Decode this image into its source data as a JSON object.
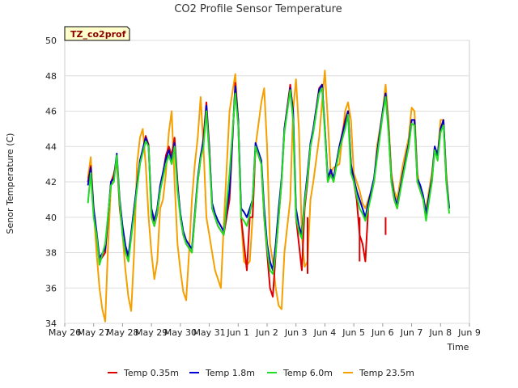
{
  "chart_data": {
    "type": "line",
    "title": "CO2 Profile Sensor Temperature",
    "xlabel": "Time",
    "ylabel": "Senor Temperature (C)",
    "badge": "TZ_co2prof",
    "ylim": [
      34,
      50
    ],
    "yticks": [
      34,
      36,
      38,
      40,
      42,
      44,
      46,
      48,
      50
    ],
    "xlim": [
      0,
      14
    ],
    "xticks": [
      0,
      1,
      2,
      3,
      4,
      5,
      6,
      7,
      8,
      9,
      10,
      11,
      12,
      13,
      14
    ],
    "xticklabels": [
      "May 26",
      "May 27",
      "May 28",
      "May 29",
      "May 30",
      "May 31",
      "Jun 1",
      "Jun 2",
      "Jun 3",
      "Jun 4",
      "Jun 5",
      "Jun 6",
      "Jun 7",
      "Jun 8",
      "Jun 9"
    ],
    "grid": true,
    "legend_position": "bottom",
    "series": [
      {
        "name": "Temp 0.35m",
        "color": "#dd0000",
        "x": [
          0.8,
          0.9,
          1.0,
          1.1,
          1.2,
          1.4,
          1.6,
          1.7,
          1.8,
          1.9,
          2.0,
          2.1,
          2.2,
          2.4,
          2.6,
          2.8,
          2.9,
          3.0,
          3.1,
          3.2,
          3.3,
          3.5,
          3.6,
          3.7,
          3.8,
          3.9,
          4.0,
          4.1,
          4.2,
          4.4,
          4.6,
          4.7,
          4.8,
          4.9,
          5.0,
          5.1,
          5.2,
          5.3,
          5.5,
          5.7,
          5.9,
          6.0,
          6.1,
          6.2,
          6.3,
          6.4,
          6.5,
          6.6,
          6.8,
          6.9,
          7.0,
          7.1,
          7.2,
          7.3,
          7.4,
          7.5,
          7.6,
          7.8,
          7.9,
          8.0,
          8.1,
          8.2,
          8.3,
          8.4,
          8.5,
          8.6,
          8.8,
          8.9,
          9.0,
          9.1,
          9.2,
          9.3,
          9.5,
          9.7,
          9.8,
          9.9,
          10.0,
          10.1,
          10.2,
          10.3,
          10.4,
          10.5,
          10.6,
          10.7,
          10.8,
          11.0,
          11.1,
          11.2,
          11.3,
          11.4,
          11.5,
          11.7,
          11.9,
          12.0,
          12.1,
          12.2,
          12.3,
          12.4,
          12.5,
          12.7,
          12.8,
          12.9,
          13.0,
          13.1,
          13.2,
          13.3
        ],
        "y": [
          42.0,
          42.9,
          40.2,
          39.0,
          37.5,
          38.0,
          42.0,
          42.4,
          43.4,
          40.5,
          39.2,
          38.2,
          37.5,
          40.5,
          43.0,
          44.6,
          44.1,
          40.1,
          39.5,
          40.2,
          41.5,
          43.5,
          44.0,
          43.5,
          44.5,
          42.0,
          40.0,
          39.0,
          38.5,
          38.0,
          42.0,
          43.3,
          44.5,
          46.5,
          44.0,
          40.5,
          40.0,
          39.5,
          39.0,
          41.0,
          47.6,
          45.5,
          40.0,
          38.5,
          37.0,
          40.0,
          40.0,
          44.0,
          43.0,
          40.0,
          38.0,
          36.0,
          35.5,
          38.0,
          40.0,
          42.0,
          45.0,
          47.5,
          46.0,
          40.0,
          38.5,
          37.0,
          40.5,
          42.0,
          44.0,
          45.0,
          47.3,
          47.5,
          45.0,
          42.0,
          42.5,
          42.0,
          44.0,
          45.5,
          46.0,
          43.0,
          42.0,
          41.0,
          39.0,
          38.5,
          37.5,
          40.5,
          41.5,
          42.0,
          43.5,
          46.0,
          47.0,
          45.0,
          42.0,
          41.0,
          40.5,
          42.5,
          44.0,
          45.5,
          45.5,
          42.0,
          41.5,
          41.0,
          40.0,
          42.0,
          44.0,
          43.5,
          45.0,
          45.5,
          42.0,
          40.5
        ],
        "extra_spikes": [
          [
            8.4,
            36.8
          ],
          [
            10.2,
            37.5
          ],
          [
            11.1,
            39.0
          ]
        ]
      },
      {
        "name": "Temp 1.8m",
        "color": "#0000cc",
        "x": [
          0.8,
          0.9,
          1.0,
          1.1,
          1.2,
          1.4,
          1.6,
          1.7,
          1.8,
          1.9,
          2.0,
          2.1,
          2.2,
          2.4,
          2.6,
          2.8,
          2.9,
          3.0,
          3.1,
          3.2,
          3.3,
          3.5,
          3.6,
          3.7,
          3.8,
          3.9,
          4.0,
          4.1,
          4.2,
          4.4,
          4.6,
          4.7,
          4.8,
          4.9,
          5.0,
          5.1,
          5.2,
          5.3,
          5.5,
          5.7,
          5.9,
          6.0,
          6.1,
          6.2,
          6.3,
          6.4,
          6.5,
          6.6,
          6.8,
          6.9,
          7.0,
          7.1,
          7.2,
          7.3,
          7.4,
          7.5,
          7.6,
          7.8,
          7.9,
          8.0,
          8.1,
          8.2,
          8.3,
          8.4,
          8.5,
          8.6,
          8.8,
          8.9,
          9.0,
          9.1,
          9.2,
          9.3,
          9.5,
          9.7,
          9.8,
          9.9,
          10.0,
          10.1,
          10.2,
          10.3,
          10.4,
          10.5,
          10.6,
          10.7,
          10.8,
          11.0,
          11.1,
          11.2,
          11.3,
          11.4,
          11.5,
          11.7,
          11.9,
          12.0,
          12.1,
          12.2,
          12.3,
          12.4,
          12.5,
          12.7,
          12.8,
          12.9,
          13.0,
          13.1,
          13.2,
          13.3
        ],
        "y": [
          41.8,
          42.8,
          40.5,
          39.2,
          37.7,
          38.2,
          42.0,
          42.2,
          43.6,
          41.0,
          39.5,
          38.4,
          37.8,
          40.5,
          43.2,
          44.5,
          44.0,
          40.5,
          39.8,
          40.5,
          41.8,
          43.3,
          43.8,
          43.2,
          44.2,
          41.8,
          40.2,
          39.2,
          38.7,
          38.2,
          42.2,
          43.5,
          44.3,
          46.3,
          43.8,
          40.8,
          40.2,
          39.8,
          39.2,
          41.5,
          47.4,
          45.5,
          40.5,
          40.3,
          40.0,
          40.5,
          41.0,
          44.2,
          43.2,
          40.5,
          38.5,
          37.5,
          37.0,
          38.5,
          40.5,
          42.2,
          45.0,
          47.3,
          46.0,
          40.5,
          39.5,
          39.0,
          41.0,
          42.5,
          44.2,
          45.0,
          47.2,
          47.5,
          45.0,
          42.2,
          42.7,
          42.2,
          44.0,
          45.3,
          46.0,
          43.0,
          42.2,
          41.5,
          41.0,
          40.5,
          40.0,
          40.8,
          41.5,
          42.2,
          43.6,
          46.0,
          47.0,
          45.0,
          42.2,
          41.2,
          40.7,
          42.5,
          44.2,
          45.5,
          45.5,
          42.2,
          41.8,
          41.2,
          40.2,
          42.2,
          44.0,
          43.5,
          45.0,
          45.5,
          42.2,
          40.5
        ]
      },
      {
        "name": "Temp 6.0m",
        "color": "#22dd22",
        "x": [
          0.8,
          0.9,
          1.0,
          1.1,
          1.2,
          1.4,
          1.6,
          1.7,
          1.8,
          1.9,
          2.0,
          2.1,
          2.2,
          2.4,
          2.6,
          2.8,
          2.9,
          3.0,
          3.1,
          3.2,
          3.3,
          3.5,
          3.6,
          3.7,
          3.8,
          3.9,
          4.0,
          4.1,
          4.2,
          4.4,
          4.6,
          4.7,
          4.8,
          4.9,
          5.0,
          5.1,
          5.2,
          5.3,
          5.5,
          5.7,
          5.9,
          6.0,
          6.1,
          6.2,
          6.3,
          6.4,
          6.5,
          6.6,
          6.8,
          6.9,
          7.0,
          7.1,
          7.2,
          7.3,
          7.4,
          7.5,
          7.6,
          7.8,
          7.9,
          8.0,
          8.1,
          8.2,
          8.3,
          8.4,
          8.5,
          8.6,
          8.8,
          8.9,
          9.0,
          9.1,
          9.2,
          9.3,
          9.5,
          9.7,
          9.8,
          9.9,
          10.0,
          10.1,
          10.2,
          10.3,
          10.4,
          10.5,
          10.6,
          10.7,
          10.8,
          11.0,
          11.1,
          11.2,
          11.3,
          11.4,
          11.5,
          11.7,
          11.9,
          12.0,
          12.1,
          12.2,
          12.3,
          12.4,
          12.5,
          12.7,
          12.8,
          12.9,
          13.0,
          13.1,
          13.2,
          13.3
        ],
        "y": [
          40.8,
          42.5,
          40.0,
          39.0,
          37.3,
          38.5,
          41.8,
          42.0,
          43.5,
          40.8,
          39.0,
          38.0,
          37.5,
          40.2,
          43.0,
          44.3,
          44.0,
          40.0,
          39.5,
          40.3,
          41.5,
          43.0,
          43.5,
          43.0,
          44.0,
          41.5,
          40.0,
          39.0,
          38.5,
          38.0,
          42.0,
          43.3,
          44.0,
          46.0,
          43.5,
          40.5,
          40.0,
          39.5,
          39.0,
          42.5,
          47.0,
          45.2,
          40.0,
          39.8,
          39.5,
          40.2,
          41.0,
          44.0,
          43.0,
          40.0,
          38.2,
          37.0,
          36.8,
          38.0,
          40.0,
          42.0,
          44.8,
          47.2,
          45.5,
          40.0,
          39.2,
          38.8,
          40.8,
          42.2,
          44.0,
          44.8,
          47.0,
          47.3,
          44.8,
          42.0,
          42.4,
          42.0,
          43.8,
          45.0,
          45.8,
          42.5,
          42.0,
          41.2,
          40.5,
          40.2,
          39.8,
          40.5,
          41.2,
          42.0,
          43.3,
          45.8,
          46.8,
          44.8,
          42.0,
          41.0,
          40.5,
          42.3,
          44.0,
          45.3,
          45.2,
          42.0,
          41.5,
          41.0,
          39.8,
          42.0,
          43.8,
          43.2,
          44.8,
          45.2,
          42.0,
          40.2
        ]
      },
      {
        "name": "Temp 23.5m",
        "color": "#f5a000",
        "x": [
          0.8,
          0.9,
          1.0,
          1.1,
          1.2,
          1.3,
          1.4,
          1.5,
          1.6,
          1.7,
          1.8,
          1.9,
          2.0,
          2.1,
          2.2,
          2.3,
          2.4,
          2.5,
          2.6,
          2.7,
          2.8,
          2.9,
          3.0,
          3.1,
          3.2,
          3.3,
          3.4,
          3.5,
          3.6,
          3.7,
          3.8,
          3.9,
          4.0,
          4.1,
          4.2,
          4.3,
          4.4,
          4.5,
          4.6,
          4.7,
          4.8,
          4.9,
          5.0,
          5.1,
          5.2,
          5.3,
          5.4,
          5.5,
          5.7,
          5.9,
          6.0,
          6.1,
          6.2,
          6.3,
          6.4,
          6.5,
          6.6,
          6.8,
          6.9,
          7.0,
          7.1,
          7.2,
          7.3,
          7.4,
          7.5,
          7.6,
          7.8,
          7.9,
          8.0,
          8.1,
          8.2,
          8.3,
          8.4,
          8.5,
          8.6,
          8.8,
          8.9,
          9.0,
          9.1,
          9.2,
          9.3,
          9.5,
          9.7,
          9.8,
          9.9,
          10.0,
          10.1,
          10.2,
          10.3,
          10.4,
          10.5,
          10.6,
          10.7,
          10.8,
          11.0,
          11.1,
          11.2,
          11.3,
          11.4,
          11.5,
          11.7,
          11.9,
          12.0,
          12.1,
          12.2,
          12.3,
          12.4,
          12.5,
          12.7,
          12.8,
          12.9,
          13.0,
          13.1,
          13.2,
          13.3
        ],
        "y": [
          42.2,
          43.4,
          40.5,
          38.0,
          36.0,
          34.8,
          34.1,
          38.5,
          41.8,
          42.5,
          43.0,
          41.0,
          39.0,
          37.0,
          35.5,
          34.7,
          38.0,
          43.0,
          44.5,
          45.0,
          43.0,
          40.0,
          38.0,
          36.5,
          37.5,
          40.5,
          41.0,
          42.5,
          44.8,
          46.0,
          42.0,
          38.5,
          37.0,
          35.8,
          35.3,
          38.0,
          41.0,
          43.0,
          44.5,
          46.8,
          44.0,
          40.0,
          39.0,
          38.0,
          37.0,
          36.5,
          36.0,
          39.5,
          46.0,
          48.1,
          45.5,
          40.0,
          37.5,
          37.3,
          37.5,
          40.0,
          44.0,
          46.5,
          47.3,
          44.0,
          38.5,
          37.5,
          36.0,
          35.0,
          34.8,
          38.0,
          41.0,
          46.0,
          47.8,
          45.0,
          39.0,
          37.2,
          37.5,
          41.0,
          42.0,
          44.5,
          46.5,
          48.3,
          45.5,
          42.5,
          42.8,
          43.0,
          46.0,
          46.5,
          45.5,
          42.5,
          42.0,
          41.5,
          40.8,
          40.5,
          41.0,
          41.5,
          42.0,
          44.0,
          46.0,
          47.5,
          45.5,
          42.5,
          41.5,
          41.0,
          43.0,
          44.5,
          46.2,
          46.0,
          42.5,
          41.5,
          41.0,
          40.5,
          42.5,
          44.0,
          43.5,
          45.5,
          45.5,
          42.5,
          40.5
        ]
      }
    ]
  }
}
